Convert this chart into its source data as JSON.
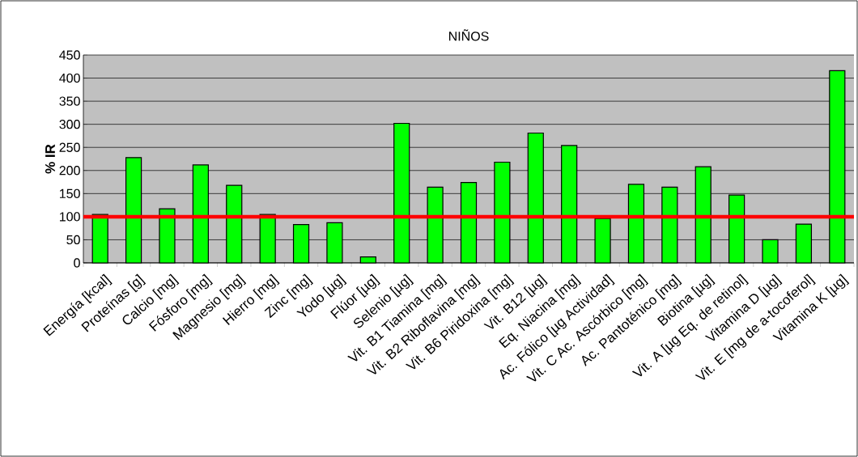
{
  "chart_data": {
    "type": "bar",
    "title": "NIÑOS",
    "ylabel": "% IR",
    "categories": [
      "Energía [kcal]",
      "Proteínas [g]",
      "Calcio [mg]",
      "Fósforo [mg]",
      "Magnesio [mg]",
      "Hierro [mg]",
      "Zinc [mg]",
      "Yodo [µg]",
      "Flúor [µg]",
      "Selenio [µg]",
      "Vit. B1  Tiamina [mg]",
      "Vit. B2 Riboflavina [mg]",
      "Vit. B6 Piridoxina [mg]",
      "Vit. B12 [µg]",
      "Eq. Niacina [mg]",
      "Ac. Fólico [µg Actividad]",
      "Vit. C Ac. Ascórbico [mg]",
      "Ac. Pantoténico [mg]",
      "Biotina [µg]",
      "Vit. A [µg Eq. de retinol]",
      "Vitamina D [µg]",
      "Vit. E [mg de a-tocoferol]",
      "Vitamina K [µg]"
    ],
    "values": [
      105,
      228,
      117,
      212,
      168,
      105,
      83,
      87,
      13,
      302,
      164,
      174,
      218,
      281,
      254,
      96,
      170,
      164,
      208,
      147,
      50,
      84,
      416
    ],
    "color": "#00ff00",
    "ylim": [
      0,
      450
    ],
    "yticks": [
      0,
      50,
      100,
      150,
      200,
      250,
      300,
      350,
      400,
      450
    ],
    "grid": "y",
    "ref_lines": [
      {
        "axis": "y",
        "value": 100,
        "color": "#ff0000"
      }
    ]
  }
}
